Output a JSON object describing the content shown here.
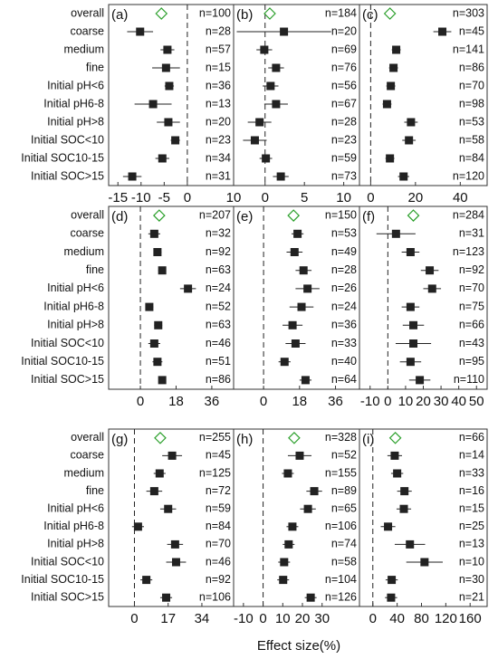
{
  "xlabel": "Effect size(%)",
  "chart_data": [
    {
      "type": "forest",
      "label": "(a)",
      "categories": [
        "overall",
        "coarse",
        "medium",
        "fine",
        "Initial pH<6",
        "Initial pH6-8",
        "Initial pH>8",
        "Initial SOC<10",
        "Initial SOC10-15",
        "Initial SOC>15"
      ],
      "values": [
        -5.6,
        -10.2,
        -4.3,
        -4.6,
        -3.9,
        -7.4,
        -4.1,
        -2.6,
        -5.4,
        -11.9
      ],
      "errors": [
        null,
        2.8,
        1.5,
        3,
        1,
        4,
        2.5,
        1,
        1.5,
        2
      ],
      "n_labels": [
        "n=100",
        "n=28",
        "n=57",
        "n=15",
        "n=36",
        "n=13",
        "n=20",
        "n=23",
        "n=34",
        "n=31"
      ],
      "xlim": [
        -17,
        10
      ],
      "xticks": [
        -15,
        -10,
        -5,
        0,
        10
      ],
      "color": "#222222",
      "overall_color": "#2ca02c"
    },
    {
      "type": "forest",
      "label": "(b)",
      "values": [
        0.6,
        2.4,
        -0.1,
        1.4,
        0.7,
        1.4,
        -0.7,
        -1.3,
        0.1,
        2.0
      ],
      "errors": [
        null,
        6,
        1,
        1,
        1,
        1.5,
        1.5,
        1.5,
        0.8,
        1
      ],
      "n_labels": [
        "n=184",
        "n=20",
        "n=69",
        "n=76",
        "n=56",
        "n=67",
        "n=28",
        "n=23",
        "n=59",
        "n=73"
      ],
      "xlim": [
        -4,
        12
      ],
      "xticks": [
        0,
        5,
        10
      ],
      "color": "#222222",
      "overall_color": "#2ca02c"
    },
    {
      "type": "forest",
      "label": "(c)",
      "values": [
        8.6,
        32,
        11.4,
        10.2,
        9,
        7.3,
        18,
        17.1,
        8.6,
        14.7
      ],
      "errors": [
        null,
        4,
        2,
        2,
        2,
        2,
        3,
        3,
        2,
        2.5
      ],
      "n_labels": [
        "n=303",
        "n=45",
        "n=141",
        "n=86",
        "n=70",
        "n=98",
        "n=53",
        "n=58",
        "n=84",
        "n=120"
      ],
      "xlim": [
        -5,
        52
      ],
      "xticks": [
        0,
        20,
        40
      ],
      "color": "#222222",
      "overall_color": "#2ca02c"
    },
    {
      "type": "forest",
      "label": "(d)",
      "categories": [
        "overall",
        "coarse",
        "medium",
        "fine",
        "Initial pH<6",
        "Initial pH6-8",
        "Initial pH>8",
        "Initial SOC<10",
        "Initial SOC10-15",
        "Initial SOC>15"
      ],
      "values": [
        9.5,
        7,
        8.6,
        11,
        24,
        4.5,
        9,
        7,
        8.6,
        11
      ],
      "errors": [
        null,
        3,
        2,
        2,
        4,
        2,
        2,
        3,
        2.5,
        1.5
      ],
      "n_labels": [
        "n=207",
        "n=32",
        "n=92",
        "n=63",
        "n=24",
        "n=52",
        "n=63",
        "n=46",
        "n=51",
        "n=86"
      ],
      "xlim": [
        -16,
        47
      ],
      "xticks": [
        0,
        18,
        36
      ],
      "color": "#222222",
      "overall_color": "#2ca02c"
    },
    {
      "type": "forest",
      "label": "(e)",
      "values": [
        15,
        17,
        15.5,
        20,
        22,
        19,
        14.5,
        16,
        10.5,
        21
      ],
      "errors": [
        null,
        3,
        4,
        4,
        6,
        6,
        5,
        5,
        3,
        3
      ],
      "n_labels": [
        "n=150",
        "n=53",
        "n=49",
        "n=28",
        "n=26",
        "n=24",
        "n=36",
        "n=33",
        "n=40",
        "n=64"
      ],
      "xlim": [
        -15,
        48
      ],
      "xticks": [
        0,
        18,
        36
      ],
      "color": "#222222",
      "overall_color": "#2ca02c"
    },
    {
      "type": "forest",
      "label": "(f)",
      "values": [
        14.4,
        4.6,
        12.8,
        23.6,
        25,
        12.8,
        14.4,
        14.4,
        12.8,
        18
      ],
      "errors": [
        null,
        11,
        5,
        5,
        5,
        5,
        6,
        10,
        6,
        6
      ],
      "n_labels": [
        "n=284",
        "n=31",
        "n=123",
        "n=92",
        "n=70",
        "n=75",
        "n=66",
        "n=43",
        "n=95",
        "n=110"
      ],
      "xlim": [
        -16,
        56
      ],
      "xticks": [
        -10,
        0,
        10,
        20,
        30,
        40,
        50
      ],
      "color": "#222222",
      "overall_color": "#2ca02c"
    },
    {
      "type": "forest",
      "label": "(g)",
      "categories": [
        "overall",
        "coarse",
        "medium",
        "fine",
        "Initial pH<6",
        "Initial pH6-8",
        "Initial pH>8",
        "Initial SOC<10",
        "Initial SOC10-15",
        "Initial SOC>15"
      ],
      "values": [
        13,
        19,
        12.7,
        10,
        17,
        1.8,
        20.5,
        21,
        6,
        16
      ],
      "errors": [
        null,
        5,
        3,
        4,
        4,
        3,
        4,
        5,
        3,
        3
      ],
      "n_labels": [
        "n=255",
        "n=45",
        "n=125",
        "n=72",
        "n=59",
        "n=84",
        "n=70",
        "n=46",
        "n=92",
        "n=106"
      ],
      "xlim": [
        -13,
        50
      ],
      "xticks": [
        0,
        17,
        34
      ],
      "color": "#222222",
      "overall_color": "#2ca02c"
    },
    {
      "type": "forest",
      "label": "(h)",
      "values": [
        15.8,
        18.6,
        12.6,
        26,
        22.8,
        14.9,
        13,
        10.7,
        10.2,
        24.2
      ],
      "errors": [
        null,
        6,
        3,
        4,
        4,
        3,
        3,
        3,
        3,
        3
      ],
      "n_labels": [
        "n=328",
        "n=52",
        "n=155",
        "n=89",
        "n=65",
        "n=106",
        "n=74",
        "n=58",
        "n=104",
        "n=126"
      ],
      "xlim": [
        -15,
        49
      ],
      "xticks": [
        -10,
        0,
        10,
        20,
        30
      ],
      "color": "#222222",
      "overall_color": "#2ca02c"
    },
    {
      "type": "forest",
      "label": "(i)",
      "values": [
        37,
        36,
        40,
        52,
        51,
        25,
        61,
        85,
        31,
        30
      ],
      "errors": [
        null,
        12,
        10,
        12,
        12,
        12,
        25,
        30,
        10,
        10
      ],
      "n_labels": [
        "n=66",
        "n=14",
        "n=33",
        "n=16",
        "n=15",
        "n=25",
        "n=13",
        "n=10",
        "n=30",
        "n=21"
      ],
      "xlim": [
        -22,
        188
      ],
      "xticks": [
        0,
        40,
        80,
        120,
        160
      ],
      "color": "#222222",
      "overall_color": "#2ca02c"
    }
  ]
}
